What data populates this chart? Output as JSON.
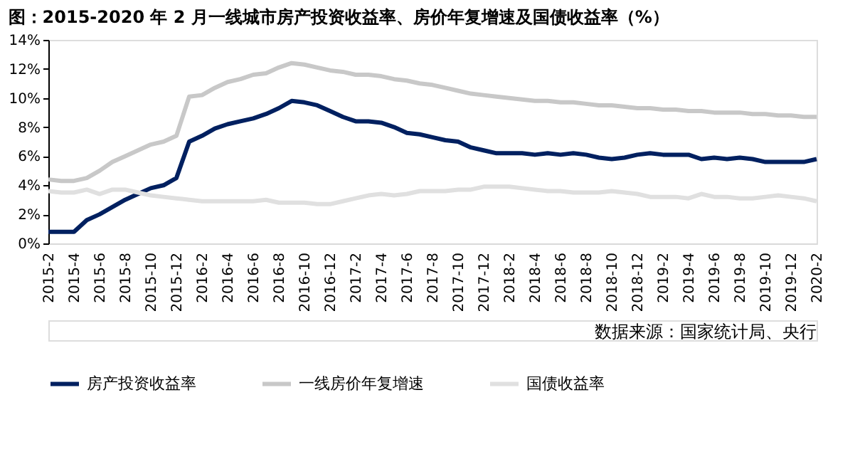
{
  "chart_data": {
    "type": "line",
    "title": "图：2015-2020 年 2 月一线城市房产投资收益率、房价年复增速及国债收益率（%）",
    "categories": [
      "2015-2",
      null,
      "2015-4",
      null,
      "2015-6",
      null,
      "2015-8",
      null,
      "2015-10",
      null,
      "2015-12",
      null,
      "2016-2",
      null,
      "2016-4",
      null,
      "2016-6",
      null,
      "2016-8",
      null,
      "2016-10",
      null,
      "2016-12",
      null,
      "2017-2",
      null,
      "2017-4",
      null,
      "2017-6",
      null,
      "2017-8",
      null,
      "2017-10",
      null,
      "2017-12",
      null,
      "2018-2",
      null,
      "2018-4",
      null,
      "2018-6",
      null,
      "2018-8",
      null,
      "2018-10",
      null,
      "2018-12",
      null,
      "2019-2",
      null,
      "2019-4",
      null,
      "2019-6",
      null,
      "2019-8",
      null,
      "2019-10",
      null,
      "2019-12",
      null,
      "2020-2"
    ],
    "series": [
      {
        "name": "房产投资收益率",
        "color": "#002060",
        "values": [
          0.8,
          0.8,
          0.8,
          1.6,
          2.0,
          2.5,
          3.0,
          3.4,
          3.8,
          4.0,
          4.5,
          7.0,
          7.4,
          7.9,
          8.2,
          8.4,
          8.6,
          8.9,
          9.3,
          9.8,
          9.7,
          9.5,
          9.1,
          8.7,
          8.4,
          8.4,
          8.3,
          8.0,
          7.6,
          7.5,
          7.3,
          7.1,
          7.0,
          6.6,
          6.4,
          6.2,
          6.2,
          6.2,
          6.1,
          6.2,
          6.1,
          6.2,
          6.1,
          5.9,
          5.8,
          5.9,
          6.1,
          6.2,
          6.1,
          6.1,
          6.1,
          5.8,
          5.9,
          5.8,
          5.9,
          5.8,
          5.6,
          5.6,
          5.6,
          5.6,
          5.8
        ]
      },
      {
        "name": "一线房价年复增速",
        "color": "#c8c8c8",
        "values": [
          4.4,
          4.3,
          4.3,
          4.5,
          5.0,
          5.6,
          6.0,
          6.4,
          6.8,
          7.0,
          7.4,
          10.1,
          10.2,
          10.7,
          11.1,
          11.3,
          11.6,
          11.7,
          12.1,
          12.4,
          12.3,
          12.1,
          11.9,
          11.8,
          11.6,
          11.6,
          11.5,
          11.3,
          11.2,
          11.0,
          10.9,
          10.7,
          10.5,
          10.3,
          10.2,
          10.1,
          10.0,
          9.9,
          9.8,
          9.8,
          9.7,
          9.7,
          9.6,
          9.5,
          9.5,
          9.4,
          9.3,
          9.3,
          9.2,
          9.2,
          9.1,
          9.1,
          9.0,
          9.0,
          9.0,
          8.9,
          8.9,
          8.8,
          8.8,
          8.7,
          8.7
        ]
      },
      {
        "name": "国债收益率",
        "color": "#e0e0e0",
        "values": [
          3.6,
          3.5,
          3.5,
          3.7,
          3.4,
          3.7,
          3.7,
          3.5,
          3.3,
          3.2,
          3.1,
          3.0,
          2.9,
          2.9,
          2.9,
          2.9,
          2.9,
          3.0,
          2.8,
          2.8,
          2.8,
          2.7,
          2.7,
          2.9,
          3.1,
          3.3,
          3.4,
          3.3,
          3.4,
          3.6,
          3.6,
          3.6,
          3.7,
          3.7,
          3.9,
          3.9,
          3.9,
          3.8,
          3.7,
          3.6,
          3.6,
          3.5,
          3.5,
          3.5,
          3.6,
          3.5,
          3.4,
          3.2,
          3.2,
          3.2,
          3.1,
          3.4,
          3.2,
          3.2,
          3.1,
          3.1,
          3.2,
          3.3,
          3.2,
          3.1,
          2.9
        ]
      }
    ],
    "ylim": [
      0,
      14
    ],
    "yticks": [
      {
        "value": 0,
        "label": "0%"
      },
      {
        "value": 2,
        "label": "2%"
      },
      {
        "value": 4,
        "label": "4%"
      },
      {
        "value": 6,
        "label": "6%"
      },
      {
        "value": 8,
        "label": "8%"
      },
      {
        "value": 10,
        "label": "10%"
      },
      {
        "value": 12,
        "label": "12%"
      },
      {
        "value": 14,
        "label": "14%"
      }
    ],
    "grid": false,
    "legend": "bottom",
    "line_style": "solid",
    "annotations": [
      "数据来源：国家统计局、央行"
    ]
  }
}
